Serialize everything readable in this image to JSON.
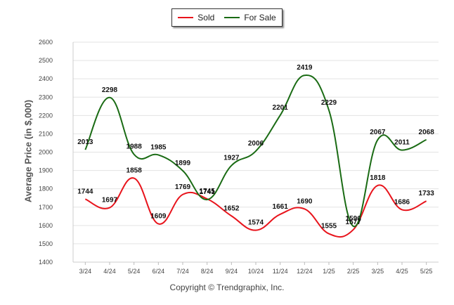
{
  "legend": {
    "sold_label": "Sold",
    "for_sale_label": "For Sale"
  },
  "copyright": "Copyright © Trendgraphix, Inc.",
  "chart_data": {
    "type": "line",
    "xlabel": "",
    "ylabel": "Average Price (in $,000)",
    "ylim": [
      1400,
      2600
    ],
    "yticks": [
      1400,
      1500,
      1600,
      1700,
      1800,
      1900,
      2000,
      2100,
      2200,
      2300,
      2400,
      2500,
      2600
    ],
    "grid": true,
    "legend_placement": "top-center",
    "categories": [
      "3/24",
      "4/24",
      "5/24",
      "6/24",
      "7/24",
      "8/24",
      "9/24",
      "10/24",
      "11/24",
      "12/24",
      "1/25",
      "2/25",
      "3/25",
      "4/25",
      "5/25"
    ],
    "series": [
      {
        "name": "Sold",
        "color": "#e8141c",
        "values": [
          1744,
          1697,
          1858,
          1609,
          1769,
          1745,
          1652,
          1574,
          1661,
          1690,
          1555,
          1577,
          1818,
          1686,
          1733
        ]
      },
      {
        "name": "For Sale",
        "color": "#1a6b14",
        "values": [
          2013,
          2298,
          1988,
          1985,
          1899,
          1741,
          1927,
          2006,
          2201,
          2419,
          2229,
          1596,
          2067,
          2011,
          2068
        ]
      }
    ]
  }
}
